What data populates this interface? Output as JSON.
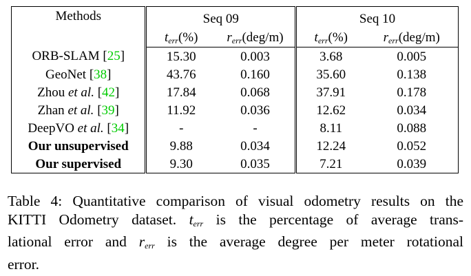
{
  "table": {
    "header": {
      "methods": "Methods",
      "seq09": "Seq 09",
      "seq10": "Seq 10",
      "terr_unit": "(%)",
      "rerr_unit": "(deg/m)",
      "t_sym": "t",
      "r_sym": "r",
      "err_sub": "err"
    },
    "rows": [
      {
        "name": "ORB-SLAM [",
        "name_it": "",
        "cite": "25",
        "close": "]",
        "bold": false,
        "t09": "15.30",
        "r09": "0.003",
        "t10": "3.68",
        "r10": "0.005"
      },
      {
        "name": "GeoNet [",
        "name_it": "",
        "cite": "38",
        "close": "]",
        "bold": false,
        "t09": "43.76",
        "r09": "0.160",
        "t10": "35.60",
        "r10": "0.138"
      },
      {
        "name": "Zhou ",
        "name_it": "et al.",
        "cite": "42",
        "close": "]",
        "bold": false,
        "t09": "17.84",
        "r09": "0.068",
        "t10": "37.91",
        "r10": "0.178"
      },
      {
        "name": "Zhan ",
        "name_it": "et al.",
        "cite": "39",
        "close": "]",
        "bold": false,
        "t09": "11.92",
        "r09": "0.036",
        "t10": "12.62",
        "r10": "0.034"
      },
      {
        "name": "DeepVO ",
        "name_it": "et al.",
        "cite": "34",
        "close": "]",
        "bold": false,
        "t09": "-",
        "r09": "-",
        "t10": "8.11",
        "r10": "0.088"
      },
      {
        "name": "Our unsupervised",
        "name_it": "",
        "cite": "",
        "close": "",
        "bold": true,
        "t09": "9.88",
        "r09": "0.034",
        "t10": "12.24",
        "r10": "0.052"
      },
      {
        "name": "Our supervised",
        "name_it": "",
        "cite": "",
        "close": "",
        "bold": true,
        "t09": "9.30",
        "r09": "0.035",
        "t10": "7.21",
        "r10": "0.039"
      }
    ]
  },
  "caption": {
    "l1": "Table 4: Quantitative comparison of visual odometry results on the",
    "l2a": "KITTI Odometry dataset.",
    "l2b": "is the percentage of average trans-",
    "l3a": "lational error and",
    "l3b": "is the average degree per meter rotational",
    "l4": "error."
  }
}
